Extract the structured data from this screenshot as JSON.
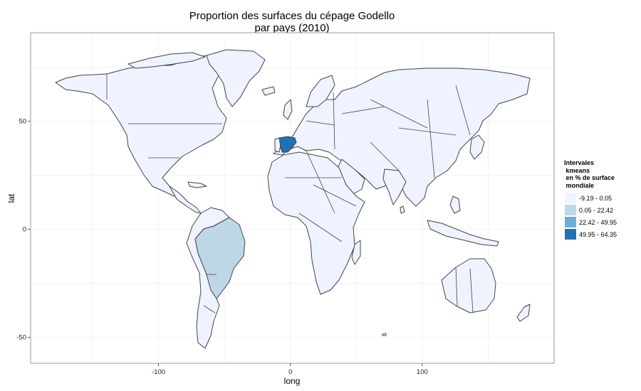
{
  "title": {
    "line1": "Proportion des surfaces du cépage Godello",
    "line2": "par pays (2010)"
  },
  "axes": {
    "xlabel": "long",
    "ylabel": "lat",
    "x_ticks": [
      {
        "value": -100,
        "label": "-100"
      },
      {
        "value": 0,
        "label": "0"
      },
      {
        "value": 100,
        "label": "100"
      }
    ],
    "y_ticks": [
      {
        "value": 50,
        "label": "50"
      },
      {
        "value": 0,
        "label": "0"
      },
      {
        "value": -50,
        "label": "-50"
      }
    ],
    "xlim": [
      -197,
      200
    ],
    "ylim": [
      -62,
      91
    ]
  },
  "legend": {
    "title_lines": [
      "Intervales",
      " kmeans",
      " en % de surface",
      " mondiale"
    ],
    "items": [
      {
        "label": "-9.19 - 0.05",
        "color": "#eff3ff"
      },
      {
        "label": "0.05 - 22.42",
        "color": "#bdd7e7"
      },
      {
        "label": "22.42 - 49.95",
        "color": "#6baed6"
      },
      {
        "label": "49.95 - 64.35",
        "color": "#2171b5"
      }
    ]
  },
  "colors": {
    "panel_bg": "#ffffff",
    "grid": "#f0f0f0",
    "panel_border": "#7f7f7f",
    "country_border": "#444444",
    "default_fill": "#eff3ff",
    "brazil_fill": "#bdd7e7",
    "spain_fill": "#2171b5"
  },
  "highlighted_countries": [
    {
      "name": "Spain",
      "class": "49.95 - 64.35"
    },
    {
      "name": "Brazil",
      "class": "0.05 - 22.42"
    }
  ]
}
